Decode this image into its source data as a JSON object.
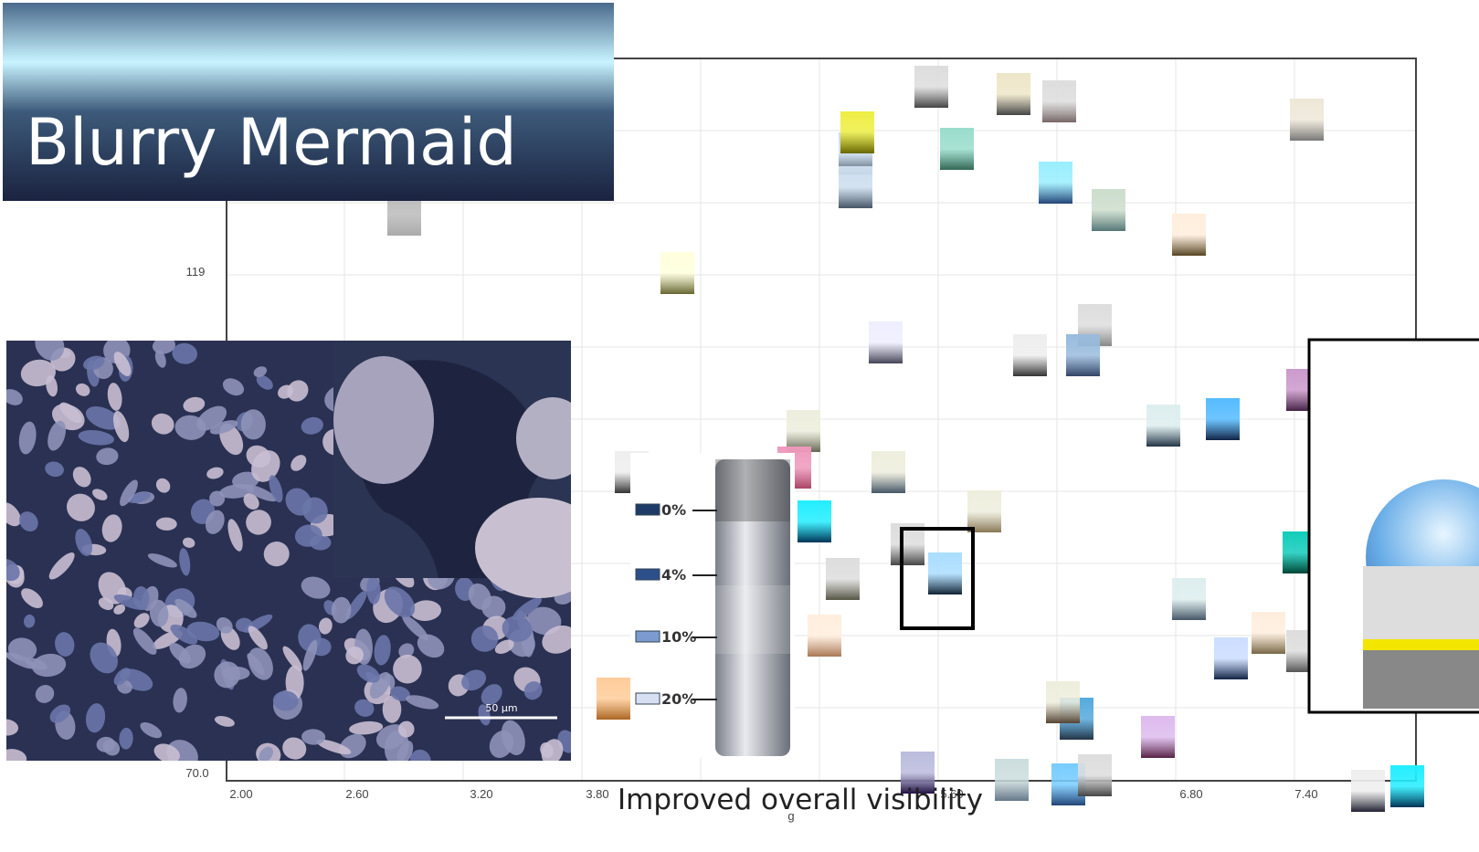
{
  "header": {
    "title": "Blurry Mermaid"
  },
  "plot": {
    "y_ticks": [
      "119",
      "70.0"
    ],
    "x_ticks": [
      "2.00",
      "2.60",
      "3.20",
      "3.80",
      "5.60",
      "6.80",
      "7.40"
    ],
    "x_label": "g"
  },
  "micrograph": {
    "scale_label": "50 μm"
  },
  "legend": {
    "levels": [
      "0%",
      "4%",
      "10%",
      "20%"
    ]
  },
  "caption": "Improved overall visibility"
}
